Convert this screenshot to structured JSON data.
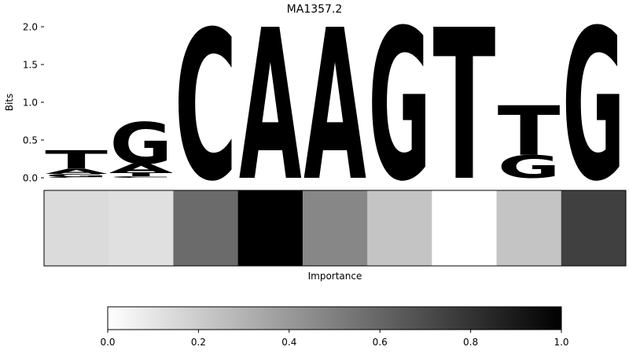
{
  "chart_data": [
    {
      "type": "sequence-logo",
      "title": "MA1357.2",
      "ylabel": "Bits",
      "ylim": [
        0,
        2.0
      ],
      "yticks": [
        "0.0",
        "0.5",
        "1.0",
        "1.5",
        "2.0"
      ],
      "colors": {
        "A": "#4ea94b",
        "C": "#4a4cff",
        "G": "#ffbe48",
        "T": "#ff4b4b"
      },
      "positions": [
        [
          {
            "base": "C",
            "bits": 0.01
          },
          {
            "base": "G",
            "bits": 0.04
          },
          {
            "base": "A",
            "bits": 0.07
          },
          {
            "base": "T",
            "bits": 0.24
          }
        ],
        [
          {
            "base": "C",
            "bits": 0.02
          },
          {
            "base": "T",
            "bits": 0.05
          },
          {
            "base": "A",
            "bits": 0.12
          },
          {
            "base": "G",
            "bits": 0.55
          }
        ],
        [
          {
            "base": "C",
            "bits": 1.98
          }
        ],
        [
          {
            "base": "A",
            "bits": 2.0
          }
        ],
        [
          {
            "base": "A",
            "bits": 2.0
          }
        ],
        [
          {
            "base": "G",
            "bits": 2.0
          }
        ],
        [
          {
            "base": "T",
            "bits": 2.0
          }
        ],
        [
          {
            "base": "G",
            "bits": 0.3
          },
          {
            "base": "T",
            "bits": 0.66
          }
        ],
        [
          {
            "base": "G",
            "bits": 2.0
          }
        ]
      ]
    },
    {
      "type": "heatmap",
      "xlabel": "Importance",
      "colormap": "Greys",
      "values": [
        0.14,
        0.12,
        0.58,
        1.0,
        0.47,
        0.23,
        0.0,
        0.23,
        0.75
      ]
    },
    {
      "type": "colorbar",
      "range": [
        0,
        1
      ],
      "tick_labels": [
        "0.0",
        "0.2",
        "0.4",
        "0.6",
        "0.8",
        "1.0"
      ]
    }
  ]
}
